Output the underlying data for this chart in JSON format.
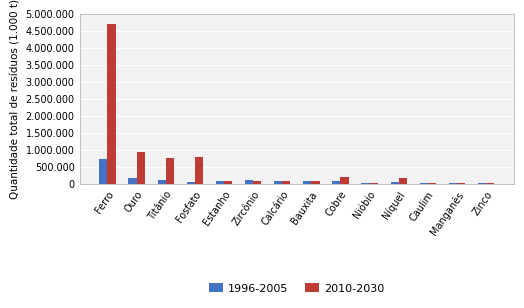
{
  "categories": [
    "Ferro",
    "Ouro",
    "Titânio",
    "Fosfato",
    "Estanho",
    "Zircônio",
    "Calcário",
    "Bauxita",
    "Cobre",
    "Nióbio",
    "Níquel",
    "Caulim",
    "Manganês",
    "Zinco"
  ],
  "series_1996": [
    750000,
    200000,
    130000,
    60000,
    100000,
    130000,
    100000,
    100000,
    90000,
    55000,
    70000,
    50000,
    45000,
    40000
  ],
  "series_2030": [
    4700000,
    950000,
    780000,
    800000,
    95000,
    110000,
    95000,
    95000,
    230000,
    55000,
    175000,
    50000,
    55000,
    50000
  ],
  "color_1996": "#4472C4",
  "color_2030": "#BE3A35",
  "ylabel": "Quantidade total de resíduos (1.000 t)",
  "legend_1996": "1996-2005",
  "legend_2030": "2010-2030",
  "ylim": [
    0,
    5000000
  ],
  "yticks": [
    0,
    500000,
    1000000,
    1500000,
    2000000,
    2500000,
    3000000,
    3500000,
    4000000,
    4500000,
    5000000
  ],
  "ytick_labels": [
    "0",
    "500.000",
    "1.000.000",
    "1.500.000",
    "2.000.000",
    "2.500.000",
    "3.000.000",
    "3.500.000",
    "4.000.000",
    "4.500.000",
    "5.000.000"
  ],
  "bg_color": "#FFFFFF",
  "plot_bg": "#F2F2F2",
  "grid_color": "#FFFFFF"
}
